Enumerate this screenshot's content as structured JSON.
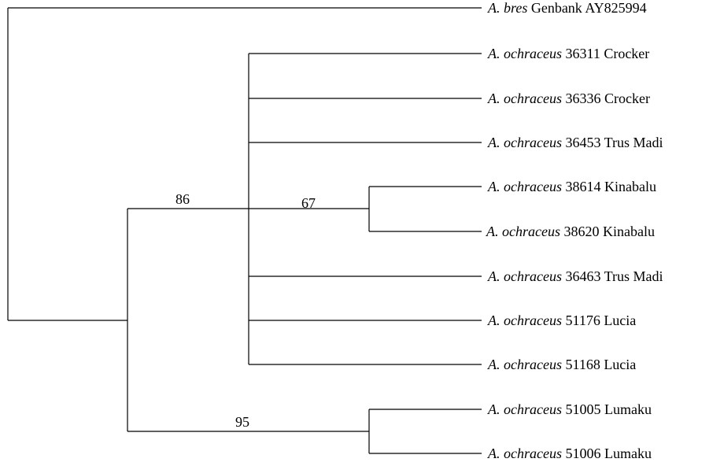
{
  "tree": {
    "line_color": "#000000",
    "taxa": [
      {
        "genus": "A. bres",
        "label": " Genbank AY825994"
      },
      {
        "genus": "A. ochraceus",
        "label": " 36311 Crocker"
      },
      {
        "genus": "A. ochraceus",
        "label": " 36336 Crocker"
      },
      {
        "genus": "A. ochraceus",
        "label": " 36453 Trus Madi"
      },
      {
        "genus": "A. ochraceus",
        "label": " 38614 Kinabalu"
      },
      {
        "genus": "A. ochraceus",
        "label": " 38620 Kinabalu"
      },
      {
        "genus": "A. ochraceus",
        "label": " 36463 Trus Madi"
      },
      {
        "genus": "A. ochraceus",
        "label": " 51176 Lucia"
      },
      {
        "genus": "A. ochraceus",
        "label": " 51168 Lucia"
      },
      {
        "genus": "A. ochraceus",
        "label": " 51005 Lumaku"
      },
      {
        "genus": "A. ochraceus",
        "label": " 51006 Lumaku"
      }
    ],
    "support_values": [
      "86",
      "67",
      "95"
    ]
  }
}
